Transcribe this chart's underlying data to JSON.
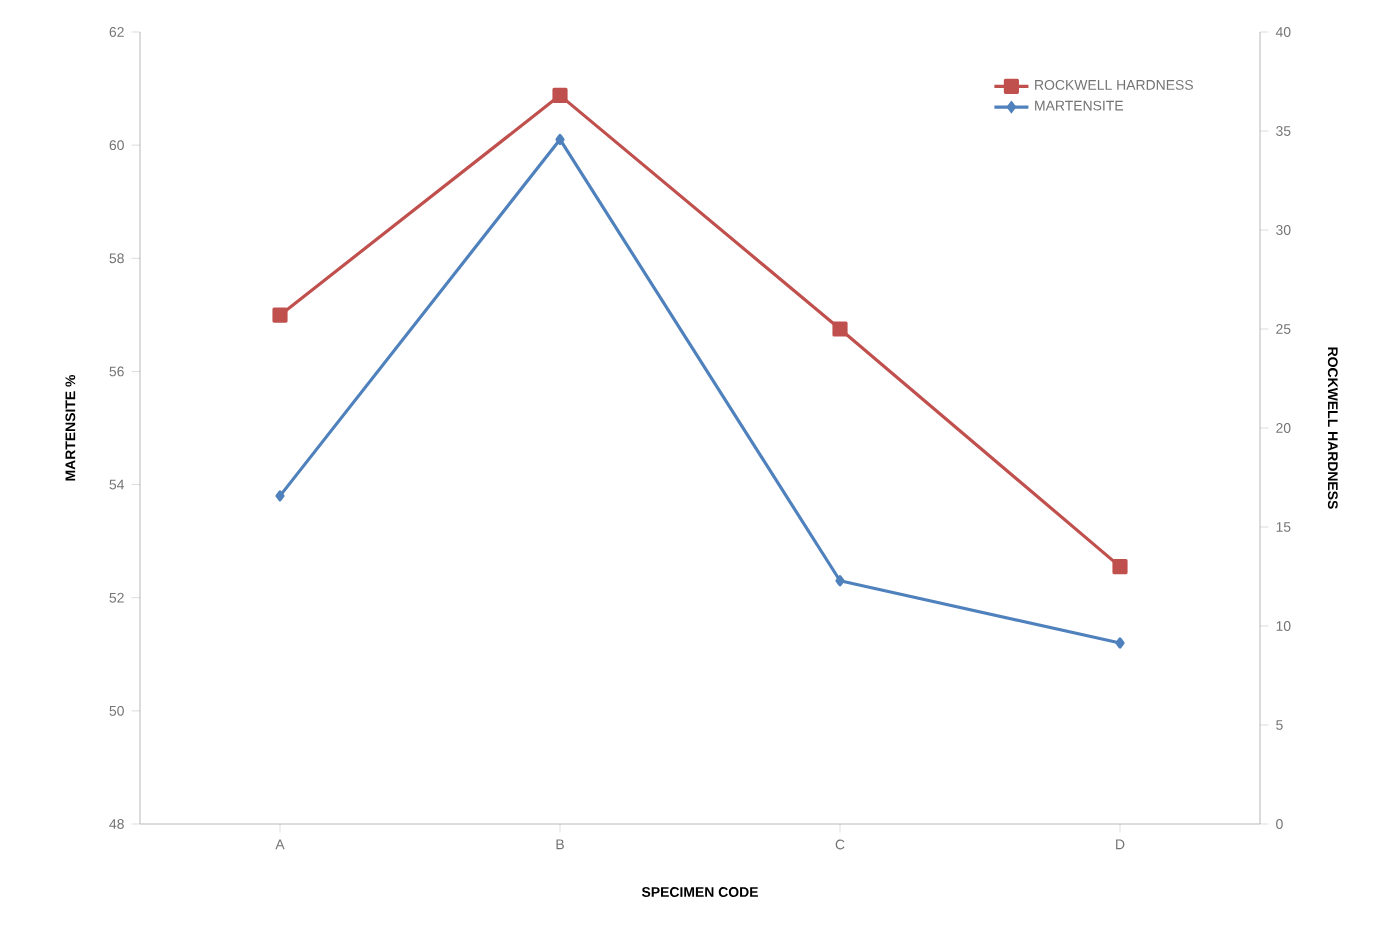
{
  "chart_data": {
    "type": "line",
    "xlabel": "SPECIMEN CODE",
    "ylabel": "MARTENSITE %",
    "y2label": "ROCKWELL HARDNESS",
    "categories": [
      "A",
      "B",
      "C",
      "D"
    ],
    "series": [
      {
        "name": "ROCKWELL HARDNESS",
        "color": "#c0504d",
        "marker": "square",
        "axis": "y2",
        "values": [
          25.7,
          36.8,
          25.0,
          13.0
        ]
      },
      {
        "name": "MARTENSITE",
        "color": "#4f81bd",
        "marker": "diamond",
        "values": [
          53.8,
          60.1,
          52.3,
          51.2
        ]
      }
    ],
    "ylim": [
      48,
      62
    ],
    "yticks": [
      48,
      50,
      52,
      54,
      56,
      58,
      60,
      62
    ],
    "y2lim": [
      0,
      40
    ],
    "y2ticks": [
      0,
      5,
      10,
      15,
      20,
      25,
      30,
      35,
      40
    ],
    "legend": "top right",
    "grid": false
  }
}
